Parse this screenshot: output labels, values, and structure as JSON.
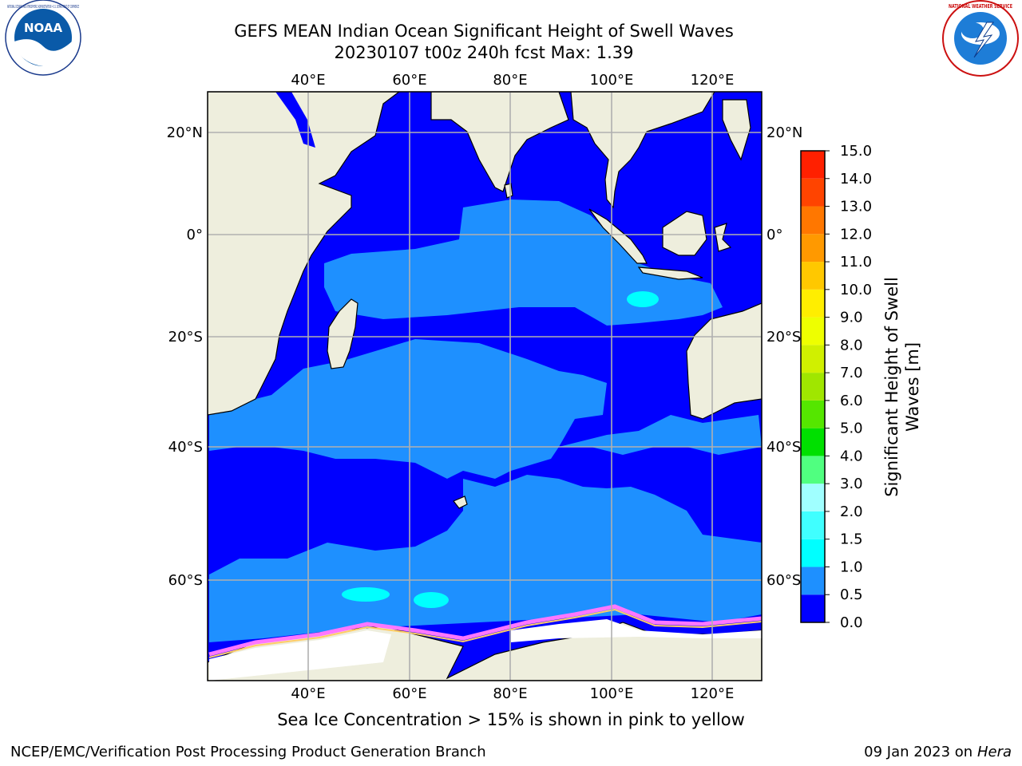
{
  "header": {
    "title_line1": "GEFS MEAN Indian Ocean Significant Height of Swell Waves",
    "title_line2": "20230107 t00z 240h fcst   Max: 1.39"
  },
  "logos": {
    "left": {
      "name": "noaa-logo",
      "text": "NOAA",
      "ring_text": "NATIONAL OCEANIC AND ATMOSPHERIC ADMINISTRATION • U.S. DEPARTMENT OF COMMERCE"
    },
    "right": {
      "name": "nws-logo",
      "ring_text": "NATIONAL WEATHER SERVICE"
    }
  },
  "map": {
    "top_lon_labels": [
      "40°E",
      "60°E",
      "80°E",
      "100°E",
      "120°E"
    ],
    "bottom_lon_labels": [
      "40°E",
      "60°E",
      "80°E",
      "100°E",
      "120°E"
    ],
    "left_lat_labels": [
      "20°N",
      "0°",
      "20°S",
      "40°S",
      "60°S"
    ],
    "right_lat_labels": [
      "20°N",
      "0°",
      "20°S",
      "40°S",
      "60°S"
    ],
    "colors": {
      "land": "#eeeedd",
      "band_0_0_5": "#0000ff",
      "band_0_5_1_0": "#1e90ff",
      "band_1_0_1_5": "#00ffff",
      "sea_ice": "#ff77ff",
      "ice_edge": "#ffcc66",
      "grid": "#b0b0b0"
    }
  },
  "colorbar": {
    "ticks": [
      "0.0",
      "0.5",
      "1.0",
      "1.5",
      "2.0",
      "3.0",
      "4.0",
      "5.0",
      "6.0",
      "7.0",
      "8.0",
      "9.0",
      "10.0",
      "11.0",
      "12.0",
      "13.0",
      "14.0",
      "15.0"
    ],
    "colors": [
      "#0000ff",
      "#1e90ff",
      "#00ffff",
      "#40ffff",
      "#a0ffff",
      "#50ff80",
      "#00e000",
      "#55e600",
      "#a0e600",
      "#d0f000",
      "#eeff00",
      "#ffee00",
      "#ffc800",
      "#ff9900",
      "#ff7700",
      "#ff4400",
      "#ff2000"
    ],
    "label_line1": "Significant Height of Swell",
    "label_line2": "Waves [m]"
  },
  "footer": {
    "caption": "Sea Ice Concentration > 15% is shown in pink to yellow",
    "credit": "NCEP/EMC/Verification Post Processing Product Generation Branch",
    "date_prefix": "09 Jan 2023 on ",
    "date_machine": "Hera"
  }
}
